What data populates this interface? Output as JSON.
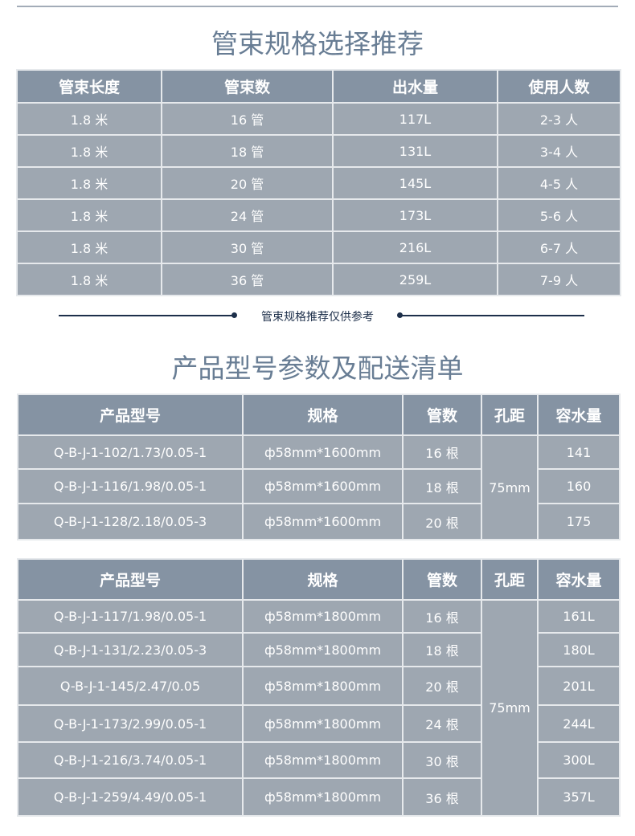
{
  "section1": {
    "title": "管束规格选择推荐",
    "headers": [
      "管束长度",
      "管束数",
      "出水量",
      "使用人数"
    ],
    "rows": [
      [
        "1.8 米",
        "16 管",
        "117L",
        "2-3 人"
      ],
      [
        "1.8 米",
        "18 管",
        "131L",
        "3-4 人"
      ],
      [
        "1.8 米",
        "20 管",
        "145L",
        "4-5 人"
      ],
      [
        "1.8 米",
        "24 管",
        "173L",
        "5-6 人"
      ],
      [
        "1.8 米",
        "30 管",
        "216L",
        "6-7 人"
      ],
      [
        "1.8 米",
        "36 管",
        "259L",
        "7-9 人"
      ]
    ],
    "note": "管束规格推荐仅供参考"
  },
  "section2": {
    "title": "产品型号参数及配送清单",
    "table1": {
      "headers": [
        "产品型号",
        "规格",
        "管数",
        "孔距",
        "容水量"
      ],
      "spacing": "75mm",
      "rows": [
        [
          "Q-B-J-1-102/1.73/0.05-1",
          "ф58mm*1600mm",
          "16 根",
          "141"
        ],
        [
          "Q-B-J-1-116/1.98/0.05-1",
          "ф58mm*1600mm",
          "18 根",
          "160"
        ],
        [
          "Q-B-J-1-128/2.18/0.05-3",
          "ф58mm*1600mm",
          "20 根",
          "175"
        ]
      ]
    },
    "table2": {
      "headers": [
        "产品型号",
        "规格",
        "管数",
        "孔距",
        "容水量"
      ],
      "spacing": "75mm",
      "rows": [
        [
          "Q-B-J-1-117/1.98/0.05-1",
          "ф58mm*1800mm",
          "16 根",
          "161L"
        ],
        [
          "Q-B-J-1-131/2.23/0.05-3",
          "ф58mm*1800mm",
          "18 根",
          "180L"
        ],
        [
          "Q-B-J-1-145/2.47/0.05",
          "ф58mm*1800mm",
          "20 根",
          "201L"
        ],
        [
          "Q-B-J-1-173/2.99/0.05-1",
          "ф58mm*1800mm",
          "24 根",
          "244L"
        ],
        [
          "Q-B-J-1-216/3.74/0.05-1",
          "ф58mm*1800mm",
          "30 根",
          "300L"
        ],
        [
          "Q-B-J-1-259/4.49/0.05-1",
          "ф58mm*1800mm",
          "36 根",
          "357L"
        ]
      ]
    }
  },
  "colors": {
    "header": "#8593a3",
    "cell": "#9ea7b1",
    "title": "#687d94",
    "note": "#1d2f4a"
  }
}
